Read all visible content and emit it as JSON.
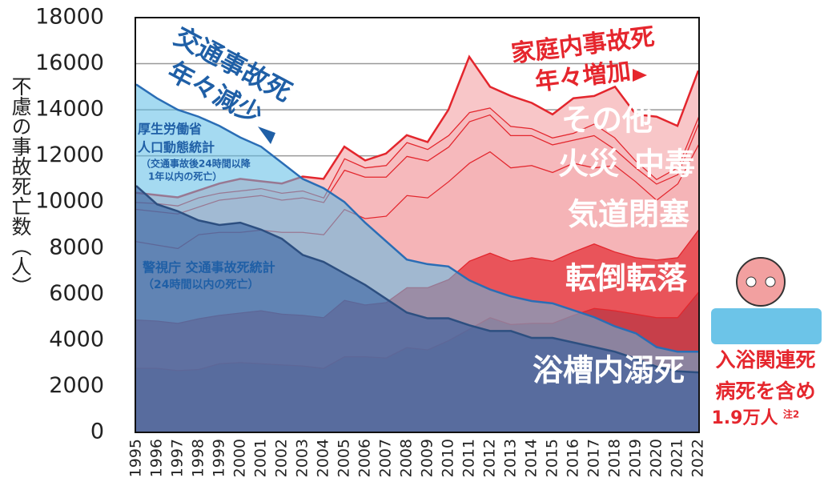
{
  "chart_data": {
    "type": "area",
    "y_label": "不慮の事故死亡数（人）",
    "categories": [
      "1995",
      "1996",
      "1997",
      "1998",
      "1999",
      "2000",
      "2001",
      "2002",
      "2003",
      "2004",
      "2005",
      "2006",
      "2007",
      "2008",
      "2009",
      "2010",
      "2011",
      "2012",
      "2013",
      "2014",
      "2015",
      "2016",
      "2017",
      "2018",
      "2019",
      "2020",
      "2021",
      "2022"
    ],
    "ylim": [
      0,
      18000
    ],
    "yticks": [
      0,
      2000,
      4000,
      6000,
      8000,
      10000,
      12000,
      14000,
      16000,
      18000
    ],
    "grid": true,
    "series": [
      {
        "name": "浴槽内溺死",
        "stacked": true,
        "color": "#c73f4a",
        "values": [
          2800,
          2800,
          2700,
          2750,
          3000,
          3050,
          3000,
          2950,
          2900,
          2800,
          3300,
          3300,
          3250,
          3700,
          3600,
          4000,
          4500,
          5000,
          4700,
          4750,
          4750,
          5100,
          5400,
          5300,
          5150,
          5000,
          5000,
          6100
        ]
      },
      {
        "name": "転倒転落",
        "stacked": true,
        "color": "#e9545a",
        "values": [
          2100,
          2050,
          2050,
          2200,
          2100,
          2150,
          2300,
          2200,
          2200,
          2200,
          2450,
          2250,
          2400,
          2600,
          2700,
          2650,
          2950,
          2800,
          2750,
          2850,
          2700,
          2750,
          2800,
          2550,
          2450,
          2500,
          2600,
          2700
        ]
      },
      {
        "name": "気道閉塞",
        "stacked": true,
        "color": "#f5b4b7",
        "values": [
          3400,
          3300,
          3250,
          3650,
          3600,
          3500,
          3500,
          3550,
          3600,
          3600,
          3950,
          3750,
          3750,
          4000,
          3900,
          4250,
          4250,
          4400,
          4050,
          4000,
          3850,
          3850,
          3300,
          3750,
          3300,
          2600,
          3200,
          3700
        ]
      },
      {
        "name": "火災",
        "stacked": true,
        "color": "#f6b9bc",
        "values": [
          1400,
          1450,
          1500,
          1200,
          1400,
          1500,
          1500,
          1400,
          1500,
          1400,
          1700,
          1800,
          1700,
          1700,
          1600,
          1500,
          1800,
          1600,
          1400,
          1300,
          1200,
          1000,
          1400,
          700,
          600,
          700,
          400,
          900
        ]
      },
      {
        "name": "中毒",
        "stacked": true,
        "color": "#f6bcbf",
        "values": [
          300,
          350,
          350,
          400,
          300,
          300,
          300,
          300,
          300,
          200,
          500,
          400,
          500,
          600,
          500,
          500,
          400,
          300,
          400,
          300,
          300,
          300,
          500,
          500,
          300,
          200,
          300,
          300
        ]
      },
      {
        "name": "その他",
        "stacked": true,
        "color": "#f8c6c8",
        "values": [
          400,
          350,
          350,
          300,
          400,
          500,
          300,
          400,
          600,
          800,
          500,
          300,
          500,
          300,
          300,
          1100,
          2400,
          900,
          1300,
          1100,
          1000,
          1500,
          1200,
          2200,
          2000,
          2700,
          1800,
          2000
        ]
      },
      {
        "name": "厚生労働省",
        "stacked": false,
        "color": "#5bbbe6",
        "values": [
          15100,
          14500,
          14000,
          13700,
          13300,
          12800,
          12400,
          11700,
          11000,
          10600,
          10000,
          9100,
          8300,
          7500,
          7300,
          7200,
          6600,
          6200,
          5900,
          5700,
          5600,
          5300,
          5000,
          4600,
          4300,
          3700,
          3500,
          3500
        ]
      },
      {
        "name": "警視庁 交通事故死統計",
        "stacked": false,
        "color": "#2e5a9c",
        "values": [
          10700,
          9900,
          9600,
          9200,
          9000,
          9100,
          8800,
          8400,
          7700,
          7400,
          6900,
          6400,
          5800,
          5200,
          4950,
          4950,
          4650,
          4400,
          4400,
          4100,
          4100,
          3900,
          3700,
          3500,
          3200,
          2850,
          2650,
          2600
        ]
      }
    ],
    "annotations": [
      "交通事故死",
      "年々減少",
      "人口動態統計",
      "（交通事故後24時間以降",
      "1年以内の死亡）",
      "（24時間以内の死亡）",
      "家庭内事故死",
      "年々増加",
      "入浴関連死",
      "病死を含め",
      "1.9万人",
      "注2"
    ]
  }
}
